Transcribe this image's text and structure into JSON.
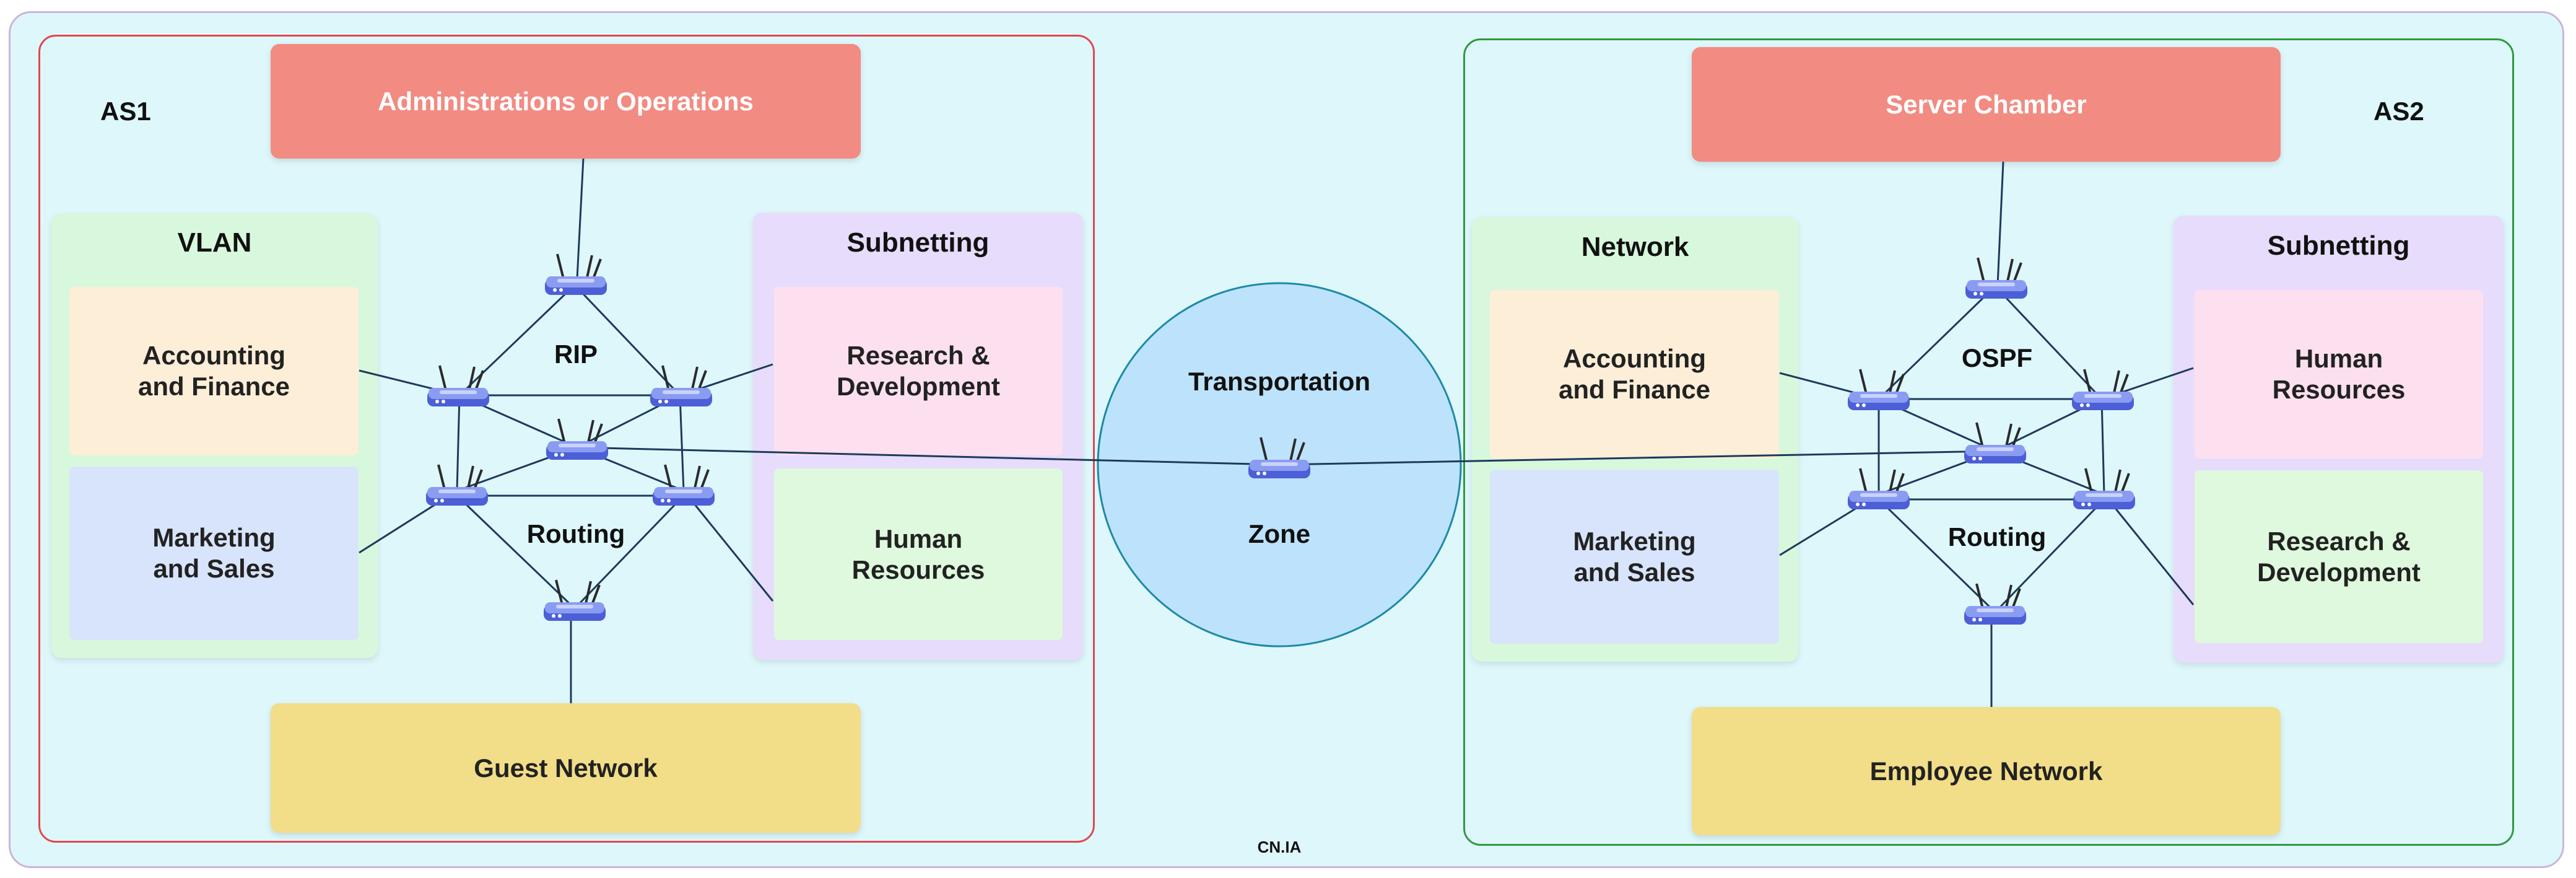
{
  "diagram": {
    "footer": "CN.IA",
    "transport": {
      "label_top": "Transportation",
      "label_bottom": "Zone"
    },
    "as1": {
      "label": "AS1",
      "top_block": "Administrations or Operations",
      "bottom_block": "Guest Network",
      "router_label_top": "RIP",
      "router_label_bottom": "Routing",
      "left_panel": {
        "title": "VLAN",
        "items": [
          "Accounting\nand Finance",
          "Marketing\nand Sales"
        ]
      },
      "right_panel": {
        "title": "Subnetting",
        "items": [
          "Research &\nDevelopment",
          "Human\nResources"
        ]
      }
    },
    "as2": {
      "label": "AS2",
      "top_block": "Server Chamber",
      "bottom_block": "Employee Network",
      "router_label_top": "OSPF",
      "router_label_bottom": "Routing",
      "left_panel": {
        "title": "Network",
        "items": [
          "Accounting\nand Finance",
          "Marketing\nand Sales"
        ]
      },
      "right_panel": {
        "title": "Subnetting",
        "items": [
          "Human\nResources",
          "Research &\nDevelopment"
        ]
      }
    },
    "colors": {
      "background": "#def7fb",
      "as1_border": "#e2474f",
      "as2_border": "#2e9a3f",
      "header_block": "#f28b82",
      "footer_block": "#f2de88",
      "transport_zone": "#bde2fb",
      "link": "#1d3a5c",
      "router": "#5a6fe0"
    },
    "icons": [
      "router-icon"
    ]
  }
}
